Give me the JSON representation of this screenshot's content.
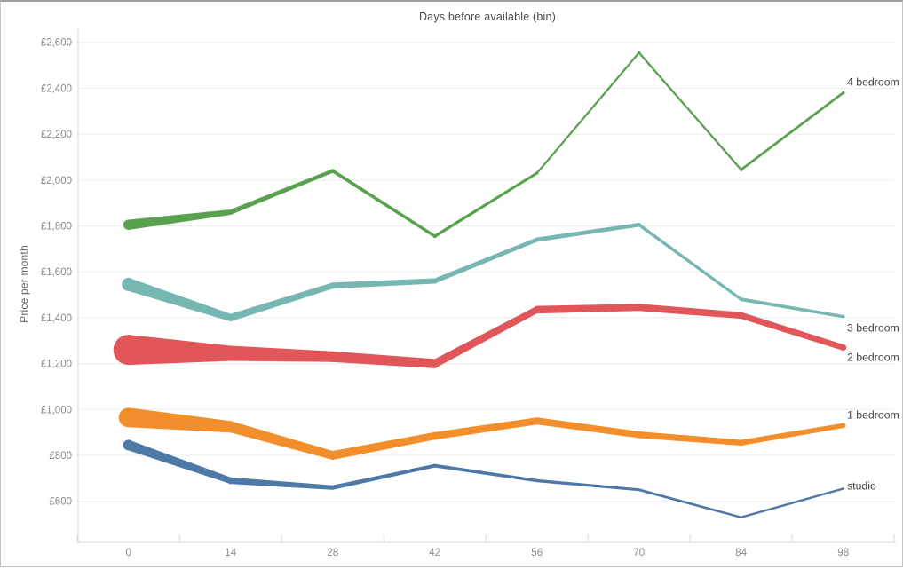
{
  "chart_data": {
    "type": "line",
    "title": "Days before available (bin)",
    "xlabel": "Days before available (bin)",
    "ylabel": "Price per month",
    "x": [
      0,
      14,
      28,
      42,
      56,
      70,
      84,
      98
    ],
    "x_tick_labels": [
      "0",
      "14",
      "28",
      "42",
      "56",
      "70",
      "84",
      "98"
    ],
    "y_axis": {
      "min": 600,
      "max": 2600,
      "step": 200,
      "ticks": [
        {
          "value": 600,
          "label": "£600"
        },
        {
          "value": 800,
          "label": "£800"
        },
        {
          "value": 1000,
          "label": "£1,000"
        },
        {
          "value": 1200,
          "label": "£1,200"
        },
        {
          "value": 1400,
          "label": "£1,400"
        },
        {
          "value": 1600,
          "label": "£1,600"
        },
        {
          "value": 1800,
          "label": "£1,800"
        },
        {
          "value": 2000,
          "label": "£2,000"
        },
        {
          "value": 2200,
          "label": "£2,200"
        },
        {
          "value": 2400,
          "label": "£2,400"
        },
        {
          "value": 2600,
          "label": "£2,600"
        }
      ]
    },
    "grid": "horizontal-only",
    "legend_position": "end-of-line-labels",
    "series": [
      {
        "name": "4 bedroom",
        "color": "#59a14f",
        "values": [
          1805,
          1860,
          2040,
          1755,
          2030,
          2555,
          2045,
          2380
        ],
        "widths": [
          11.5,
          6,
          4.5,
          4,
          3.5,
          3.5,
          3.5,
          3.5
        ],
        "label_dy": -12
      },
      {
        "name": "3 bedroom",
        "color": "#76b7b2",
        "values": [
          1545,
          1400,
          1540,
          1560,
          1740,
          1805,
          1480,
          1405
        ],
        "widths": [
          15,
          8.5,
          7,
          6,
          5,
          4.5,
          4,
          3.5
        ],
        "label_dy": 13
      },
      {
        "name": "2 bedroom",
        "color": "#e15759",
        "values": [
          1260,
          1245,
          1230,
          1200,
          1435,
          1445,
          1410,
          1270
        ],
        "widths": [
          34,
          17,
          12,
          10.5,
          8.5,
          8,
          7.5,
          7
        ],
        "label_dy": 11
      },
      {
        "name": "1 bedroom",
        "color": "#f28e2b",
        "values": [
          965,
          925,
          800,
          885,
          950,
          890,
          855,
          930
        ],
        "widths": [
          22,
          13,
          10,
          8.5,
          8,
          7.5,
          6.5,
          5.5
        ],
        "label_dy": -12
      },
      {
        "name": "studio",
        "color": "#4e79a7",
        "values": [
          845,
          690,
          660,
          755,
          690,
          650,
          530,
          655
        ],
        "widths": [
          12,
          7.5,
          5,
          4,
          3.5,
          3,
          2.5,
          2.5
        ],
        "label_dy": -3
      }
    ],
    "style_colors": {
      "gridline": "#ebebeb",
      "axis_line": "#d9d9d9",
      "tick_label": "#8a8a8a",
      "series_label": "#424242"
    }
  }
}
